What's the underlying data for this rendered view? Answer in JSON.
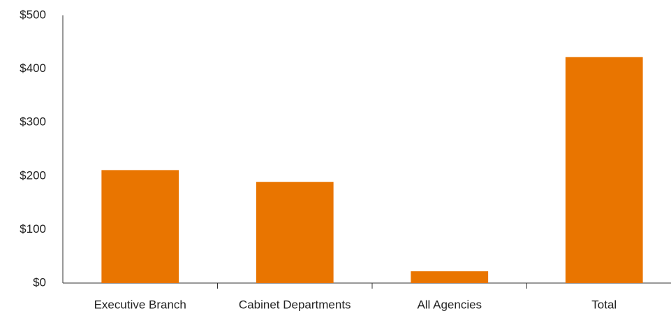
{
  "chart_data": {
    "type": "bar",
    "categories": [
      "Executive Branch",
      "Cabinet Departments",
      "All Agencies",
      "Total"
    ],
    "values": [
      211,
      189,
      22,
      422
    ],
    "color": "#e97500",
    "ylim": [
      0,
      500
    ],
    "yticks": [
      {
        "value": 0,
        "label": "$0"
      },
      {
        "value": 100,
        "label": "$100"
      },
      {
        "value": 200,
        "label": "$200"
      },
      {
        "value": 300,
        "label": "$300"
      },
      {
        "value": 400,
        "label": "$400"
      },
      {
        "value": 500,
        "label": "$500"
      }
    ],
    "grid": false
  }
}
